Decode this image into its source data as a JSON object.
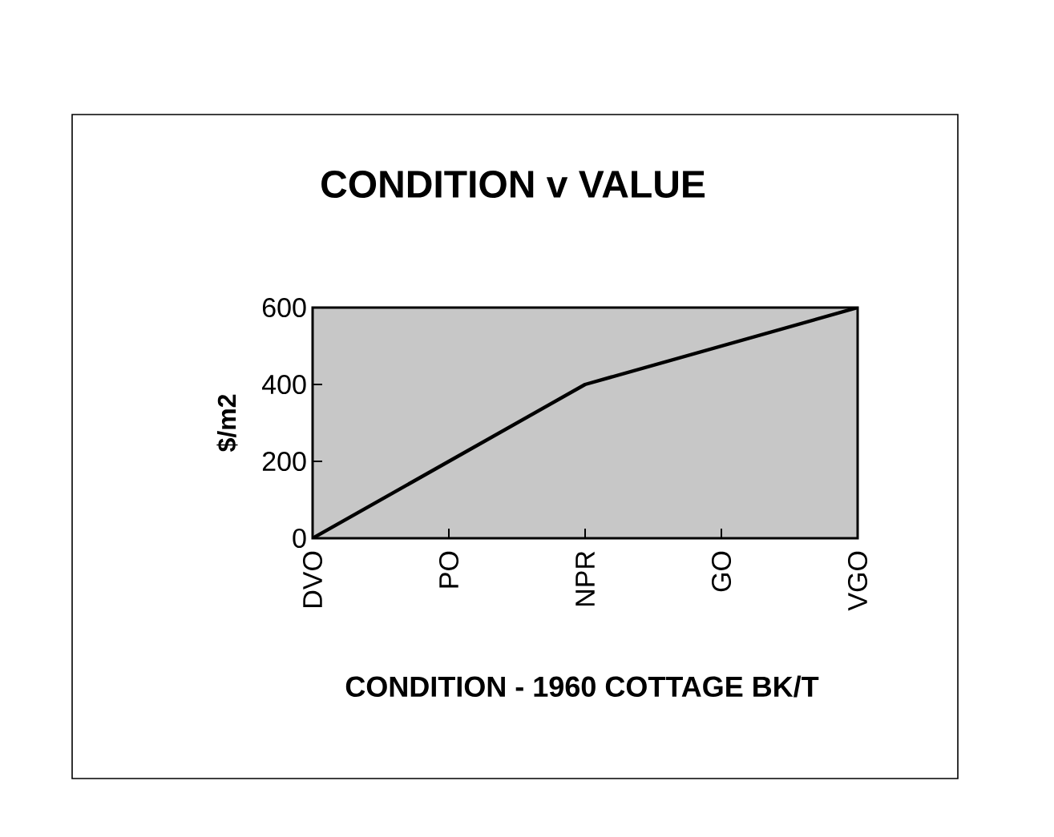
{
  "chart_data": {
    "type": "line",
    "title": "CONDITION v VALUE",
    "xlabel": "CONDITION - 1960 COTTAGE BK/T",
    "ylabel": "$/m2",
    "categories": [
      "DVO",
      "PO",
      "NPR",
      "GO",
      "VGO"
    ],
    "values": [
      0,
      200,
      400,
      500,
      600
    ],
    "color": "#000000",
    "ylim": [
      0,
      600
    ],
    "yticks": [
      0,
      200,
      400,
      600
    ],
    "grid": false,
    "marker": "none",
    "line_style": "solid"
  }
}
